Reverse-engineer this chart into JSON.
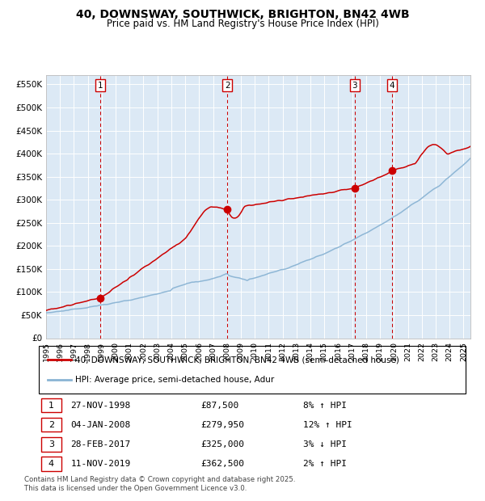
{
  "title": "40, DOWNSWAY, SOUTHWICK, BRIGHTON, BN42 4WB",
  "subtitle": "Price paid vs. HM Land Registry's House Price Index (HPI)",
  "red_label": "40, DOWNSWAY, SOUTHWICK, BRIGHTON, BN42 4WB (semi-detached house)",
  "blue_label": "HPI: Average price, semi-detached house, Adur",
  "footnote1": "Contains HM Land Registry data © Crown copyright and database right 2025.",
  "footnote2": "This data is licensed under the Open Government Licence v3.0.",
  "transactions": [
    {
      "num": 1,
      "date": "27-NOV-1998",
      "price": "£87,500",
      "hpi": "8% ↑ HPI",
      "year": 1998.9,
      "price_val": 87500
    },
    {
      "num": 2,
      "date": "04-JAN-2008",
      "price": "£279,950",
      "hpi": "12% ↑ HPI",
      "year": 2008.02,
      "price_val": 279950
    },
    {
      "num": 3,
      "date": "28-FEB-2017",
      "price": "£325,000",
      "hpi": "3% ↓ HPI",
      "year": 2017.17,
      "price_val": 325000
    },
    {
      "num": 4,
      "date": "11-NOV-2019",
      "price": "£362,500",
      "hpi": "2% ↑ HPI",
      "year": 2019.87,
      "price_val": 362500
    }
  ],
  "ylim": [
    0,
    570000
  ],
  "yticks": [
    0,
    50000,
    100000,
    150000,
    200000,
    250000,
    300000,
    350000,
    400000,
    450000,
    500000,
    550000
  ],
  "ytick_labels": [
    "£0",
    "£50K",
    "£100K",
    "£150K",
    "£200K",
    "£250K",
    "£300K",
    "£350K",
    "£400K",
    "£450K",
    "£500K",
    "£550K"
  ],
  "xlim_start": 1995,
  "xlim_end": 2025.5,
  "bg_color": "#dce9f5",
  "red_color": "#cc0000",
  "blue_color": "#8ab4d4",
  "vline_color": "#cc0000",
  "grid_color": "#ffffff",
  "marker_color": "#cc0000",
  "title_fontsize": 10,
  "subtitle_fontsize": 8.5
}
